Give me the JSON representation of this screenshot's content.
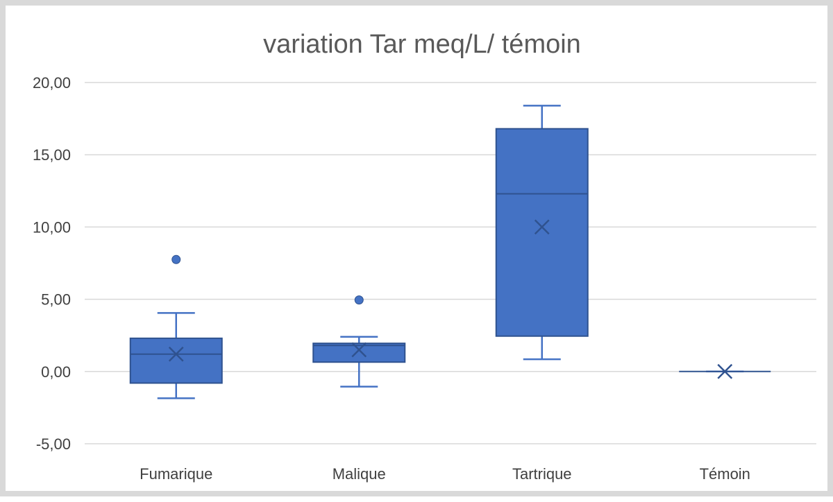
{
  "chart_data": {
    "type": "box",
    "title": "variation Tar meq/L/ témoin",
    "xlabel": "",
    "ylabel": "",
    "ylim": [
      -5,
      20
    ],
    "y_ticks": [
      "20,00",
      "15,00",
      "10,00",
      "5,00",
      "0,00",
      "-5,00"
    ],
    "y_tick_values": [
      20,
      15,
      10,
      5,
      0,
      -5
    ],
    "grid": true,
    "legend": "none",
    "color": "#4472c4",
    "categories": [
      "Fumarique",
      "Malique",
      "Tartrique",
      "Témoin"
    ],
    "boxes": [
      {
        "category": "Fumarique",
        "min": -1.85,
        "q1": -0.8,
        "median": 1.2,
        "q3": 2.3,
        "max": 4.05,
        "mean": 1.2,
        "outliers": [
          7.75
        ]
      },
      {
        "category": "Malique",
        "min": -1.05,
        "q1": 0.65,
        "median": 1.8,
        "q3": 1.95,
        "max": 2.4,
        "mean": 1.5,
        "outliers": [
          4.95
        ]
      },
      {
        "category": "Tartrique",
        "min": 0.85,
        "q1": 2.45,
        "median": 12.3,
        "q3": 16.8,
        "max": 18.4,
        "mean": 10.0,
        "outliers": []
      },
      {
        "category": "Témoin",
        "min": 0,
        "q1": 0,
        "median": 0,
        "q3": 0,
        "max": 0,
        "mean": 0,
        "outliers": []
      }
    ]
  }
}
